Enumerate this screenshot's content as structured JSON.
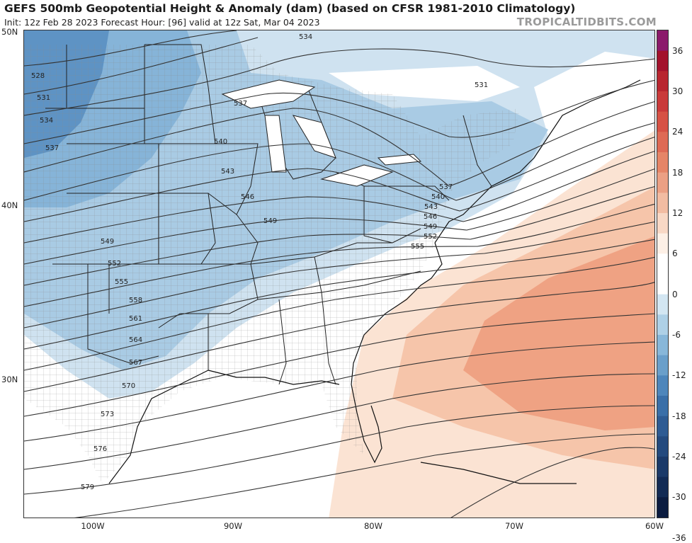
{
  "header": {
    "title": "GEFS 500mb Geopotential Height & Anomaly (dam) (based on CFSR 1981-2010 Climatology)",
    "subtitle": "Init: 12z Feb 28 2023   Forecast Hour: [96]   valid at 12z Sat, Mar 04 2023",
    "brand": "TROPICALTIDBITS.COM"
  },
  "axes": {
    "lat_labels": [
      "50N",
      "40N",
      "30N"
    ],
    "lon_labels": [
      "100W",
      "90W",
      "80W",
      "70W",
      "60W"
    ]
  },
  "colorbar": {
    "labels": [
      "36",
      "30",
      "24",
      "18",
      "12",
      "6",
      "0",
      "-6",
      "-12",
      "-18",
      "-24",
      "-30",
      "-36"
    ],
    "colors_top_to_bottom": [
      "#8b1a6b",
      "#a3122c",
      "#b8262f",
      "#c93a3a",
      "#d65245",
      "#de6a55",
      "#e58567",
      "#eba084",
      "#f2bca2",
      "#f8d8c5",
      "#fdf0e6",
      "#ffffff",
      "#ffffff",
      "#d3e6f2",
      "#aed0e6",
      "#88b7d9",
      "#6a9fca",
      "#4e86bb",
      "#3a6fa8",
      "#2e5b93",
      "#244a7e",
      "#1b3a69",
      "#122b55",
      "#0b1c40"
    ]
  },
  "contours": {
    "labels": [
      "534",
      "531",
      "528",
      "531",
      "534",
      "537",
      "537",
      "540",
      "543",
      "546",
      "549",
      "549",
      "552",
      "555",
      "558",
      "561",
      "564",
      "567",
      "570",
      "573",
      "576",
      "579",
      "537",
      "540",
      "543",
      "546",
      "549",
      "552",
      "555"
    ]
  }
}
